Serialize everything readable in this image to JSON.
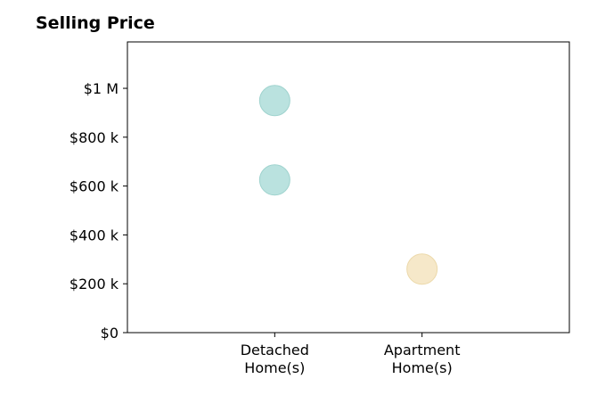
{
  "chart_data": {
    "type": "scatter",
    "title": "Selling Price",
    "xlabel": "",
    "ylabel": "",
    "categories": [
      [
        "Detached",
        "Home(s)"
      ],
      [
        "Apartment",
        "Home(s)"
      ]
    ],
    "xlim": [
      0,
      3
    ],
    "ylim": [
      0,
      1190000
    ],
    "yticks": [
      {
        "value": 0,
        "label": "$0"
      },
      {
        "value": 200000,
        "label": "$200 k"
      },
      {
        "value": 400000,
        "label": "$400 k"
      },
      {
        "value": 600000,
        "label": "$600 k"
      },
      {
        "value": 800000,
        "label": "$800 k"
      },
      {
        "value": 1000000,
        "label": "$1 M"
      }
    ],
    "points": [
      {
        "category_index": 0,
        "value": 950000,
        "color": "#b2dfdb",
        "edge": "#9fd3ce"
      },
      {
        "category_index": 0,
        "value": 625000,
        "color": "#b2dfdb",
        "edge": "#9fd3ce"
      },
      {
        "category_index": 1,
        "value": 260000,
        "color": "#f5e6c3",
        "edge": "#ecd9aa"
      }
    ],
    "grid": false,
    "legend": "none"
  }
}
